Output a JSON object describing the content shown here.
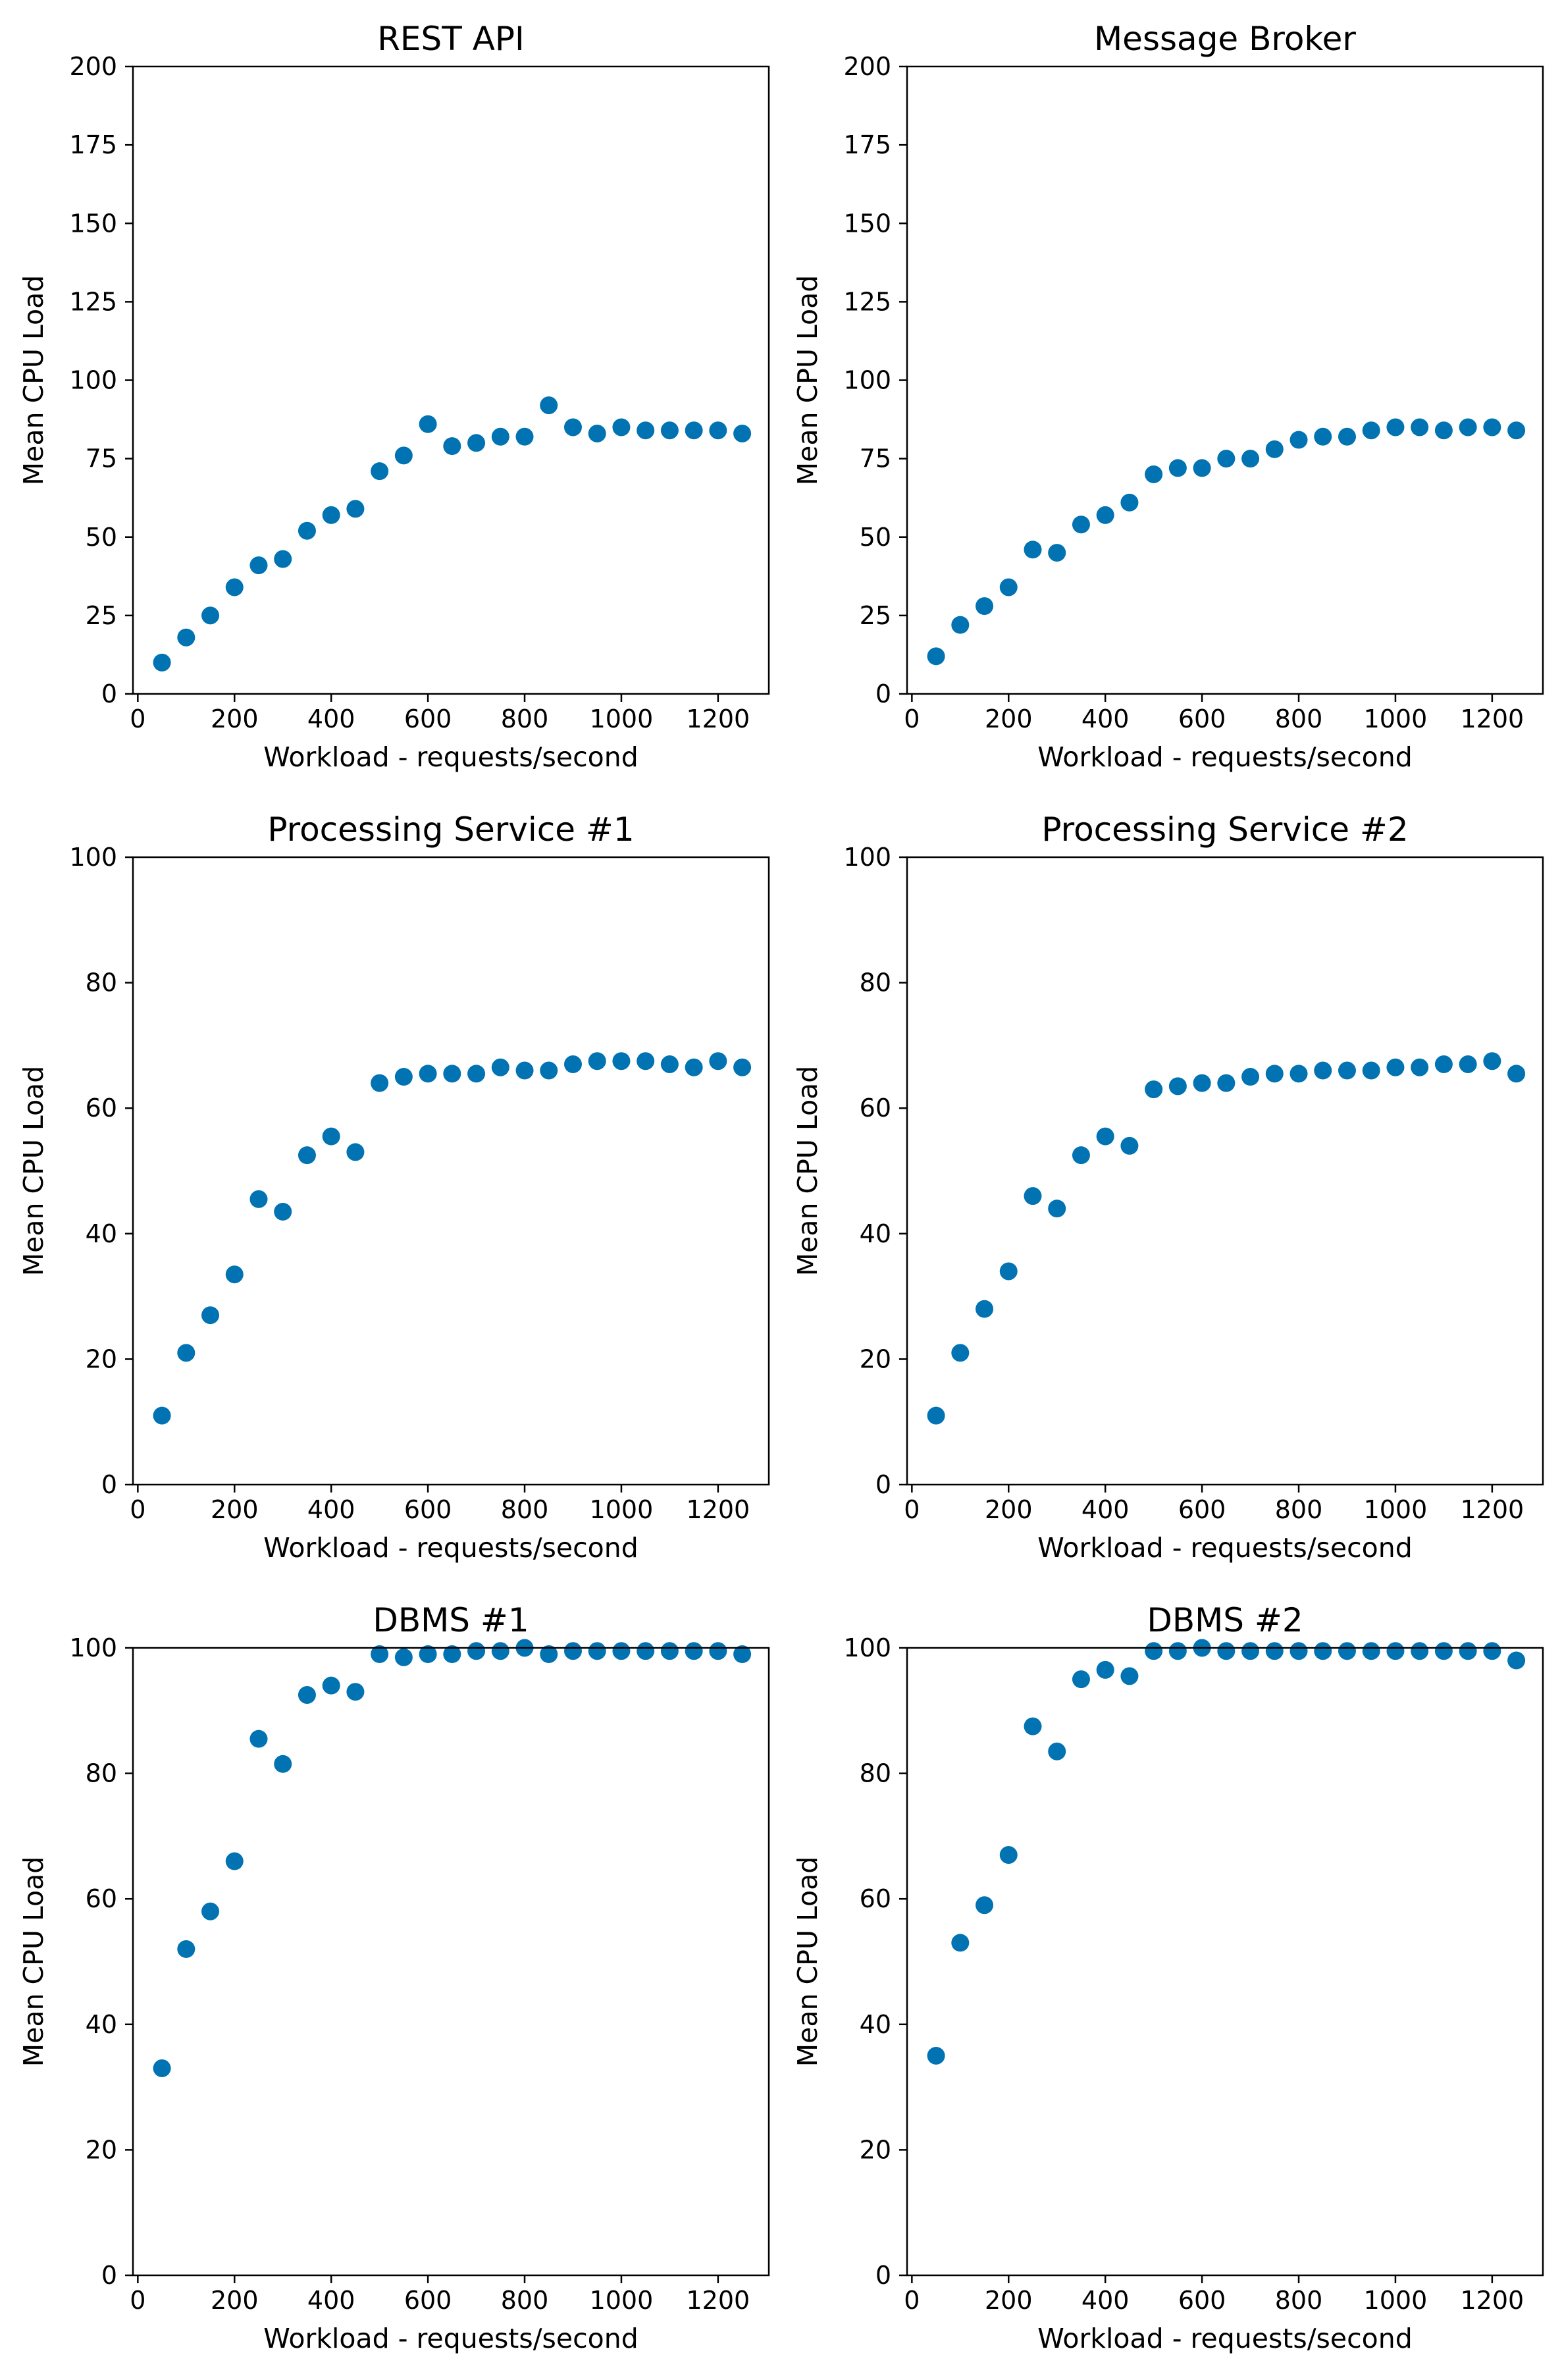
{
  "figure": {
    "marker_color": "#0173b2"
  },
  "chart_data": [
    {
      "type": "scatter",
      "title": "REST API",
      "xlabel": "Workload - requests/second",
      "ylabel": "Mean CPU Load",
      "xlim": [
        -10,
        1305
      ],
      "ylim": [
        0,
        200
      ],
      "xticks": [
        0,
        200,
        400,
        600,
        800,
        1000,
        1200
      ],
      "yticks": [
        0,
        25,
        50,
        75,
        100,
        125,
        150,
        175,
        200
      ],
      "x": [
        50,
        100,
        150,
        200,
        250,
        300,
        350,
        400,
        450,
        500,
        550,
        600,
        650,
        700,
        750,
        800,
        850,
        900,
        950,
        1000,
        1050,
        1100,
        1150,
        1200,
        1250
      ],
      "y": [
        10,
        18,
        25,
        34,
        41,
        43,
        52,
        57,
        59,
        71,
        76,
        86,
        79,
        80,
        82,
        82,
        92,
        85,
        83,
        85,
        84,
        84,
        84,
        84,
        83
      ]
    },
    {
      "type": "scatter",
      "title": "Message Broker",
      "xlabel": "Workload - requests/second",
      "ylabel": "Mean CPU Load",
      "xlim": [
        -10,
        1305
      ],
      "ylim": [
        0,
        200
      ],
      "xticks": [
        0,
        200,
        400,
        600,
        800,
        1000,
        1200
      ],
      "yticks": [
        0,
        25,
        50,
        75,
        100,
        125,
        150,
        175,
        200
      ],
      "x": [
        50,
        100,
        150,
        200,
        250,
        300,
        350,
        400,
        450,
        500,
        550,
        600,
        650,
        700,
        750,
        800,
        850,
        900,
        950,
        1000,
        1050,
        1100,
        1150,
        1200,
        1250
      ],
      "y": [
        12,
        22,
        28,
        34,
        46,
        45,
        54,
        57,
        61,
        70,
        72,
        72,
        75,
        75,
        78,
        81,
        82,
        82,
        84,
        85,
        85,
        84,
        85,
        85,
        84
      ]
    },
    {
      "type": "scatter",
      "title": "Processing Service #1",
      "xlabel": "Workload - requests/second",
      "ylabel": "Mean CPU Load",
      "xlim": [
        -10,
        1305
      ],
      "ylim": [
        0,
        100
      ],
      "xticks": [
        0,
        200,
        400,
        600,
        800,
        1000,
        1200
      ],
      "yticks": [
        0,
        20,
        40,
        60,
        80,
        100
      ],
      "x": [
        50,
        100,
        150,
        200,
        250,
        300,
        350,
        400,
        450,
        500,
        550,
        600,
        650,
        700,
        750,
        800,
        850,
        900,
        950,
        1000,
        1050,
        1100,
        1150,
        1200,
        1250
      ],
      "y": [
        11,
        21,
        27,
        33.5,
        45.5,
        43.5,
        52.5,
        55.5,
        53,
        64,
        65,
        65.5,
        65.5,
        65.5,
        66.5,
        66,
        66,
        67,
        67.5,
        67.5,
        67.5,
        67,
        66.5,
        67.5,
        66.5
      ]
    },
    {
      "type": "scatter",
      "title": "Processing Service #2",
      "xlabel": "Workload - requests/second",
      "ylabel": "Mean CPU Load",
      "xlim": [
        -10,
        1305
      ],
      "ylim": [
        0,
        100
      ],
      "xticks": [
        0,
        200,
        400,
        600,
        800,
        1000,
        1200
      ],
      "yticks": [
        0,
        20,
        40,
        60,
        80,
        100
      ],
      "x": [
        50,
        100,
        150,
        200,
        250,
        300,
        350,
        400,
        450,
        500,
        550,
        600,
        650,
        700,
        750,
        800,
        850,
        900,
        950,
        1000,
        1050,
        1100,
        1150,
        1200,
        1250
      ],
      "y": [
        11,
        21,
        28,
        34,
        46,
        44,
        52.5,
        55.5,
        54,
        63,
        63.5,
        64,
        64,
        65,
        65.5,
        65.5,
        66,
        66,
        66,
        66.5,
        66.5,
        67,
        67,
        67.5,
        65.5
      ]
    },
    {
      "type": "scatter",
      "title": "DBMS #1",
      "xlabel": "Workload - requests/second",
      "ylabel": "Mean CPU Load",
      "xlim": [
        -10,
        1305
      ],
      "ylim": [
        0,
        100
      ],
      "xticks": [
        0,
        200,
        400,
        600,
        800,
        1000,
        1200
      ],
      "yticks": [
        0,
        20,
        40,
        60,
        80,
        100
      ],
      "x": [
        50,
        100,
        150,
        200,
        250,
        300,
        350,
        400,
        450,
        500,
        550,
        600,
        650,
        700,
        750,
        800,
        850,
        900,
        950,
        1000,
        1050,
        1100,
        1150,
        1200,
        1250
      ],
      "y": [
        33,
        52,
        58,
        66,
        85.5,
        81.5,
        92.5,
        94,
        93,
        99,
        98.5,
        99,
        99,
        99.5,
        99.5,
        100,
        99,
        99.5,
        99.5,
        99.5,
        99.5,
        99.5,
        99.5,
        99.5,
        99
      ]
    },
    {
      "type": "scatter",
      "title": "DBMS #2",
      "xlabel": "Workload - requests/second",
      "ylabel": "Mean CPU Load",
      "xlim": [
        -10,
        1305
      ],
      "ylim": [
        0,
        100
      ],
      "xticks": [
        0,
        200,
        400,
        600,
        800,
        1000,
        1200
      ],
      "yticks": [
        0,
        20,
        40,
        60,
        80,
        100
      ],
      "x": [
        50,
        100,
        150,
        200,
        250,
        300,
        350,
        400,
        450,
        500,
        550,
        600,
        650,
        700,
        750,
        800,
        850,
        900,
        950,
        1000,
        1050,
        1100,
        1150,
        1200,
        1250
      ],
      "y": [
        35,
        53,
        59,
        67,
        87.5,
        83.5,
        95,
        96.5,
        95.5,
        99.5,
        99.5,
        100,
        99.5,
        99.5,
        99.5,
        99.5,
        99.5,
        99.5,
        99.5,
        99.5,
        99.5,
        99.5,
        99.5,
        99.5,
        98
      ]
    }
  ]
}
